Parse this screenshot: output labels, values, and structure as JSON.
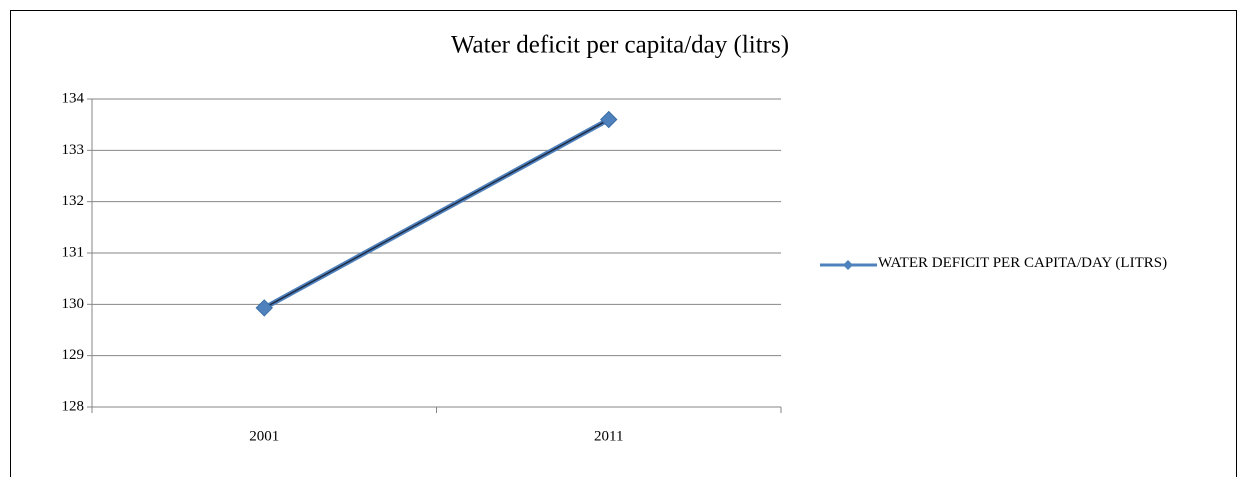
{
  "chart_data": {
    "type": "line",
    "title": "Water deficit per capita/day (litrs)",
    "categories": [
      "2001",
      "2011"
    ],
    "series": [
      {
        "name": "WATER DEFICIT PER CAPITA/DAY (LITRS)",
        "color": "#4f81bd",
        "values": [
          129.93,
          133.6
        ]
      }
    ],
    "ylim": [
      128,
      134
    ],
    "yticks": [
      128,
      129,
      130,
      131,
      132,
      133,
      134
    ],
    "grid": true,
    "legend": "right"
  }
}
